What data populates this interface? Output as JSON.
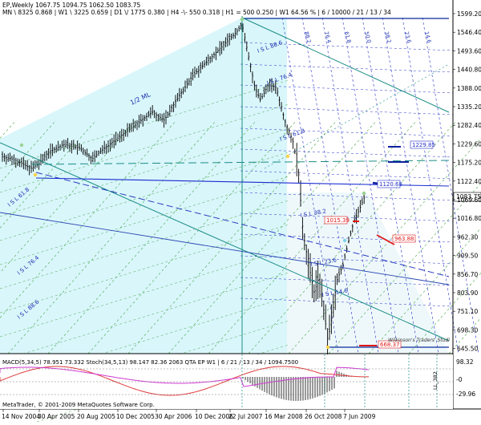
{
  "header": {
    "line1": "EP,Weekly  1067.75 1094.75 1062.50 1083.75",
    "line2": "MN  \\ 8325   0.868  |  W1 \\ 3225   0.659  |  D1 \\/ 1775   0.380  |  H4 -\\- 550   0.318  |  H1 = 500   0.250  |  W1  64.56 %  |  6 / 10000 / 21 / 13 / 34"
  },
  "price_labels": [
    "1599.20",
    "1546.40",
    "1493.60",
    "1440.80",
    "1388.00",
    "1335.20",
    "1282.40",
    "1229.60",
    "1175.20",
    "1122.40",
    "1069.60",
    "1016.80",
    "962.30",
    "909.50",
    "856.70",
    "803.90",
    "751.10",
    "698.30",
    "645.50"
  ],
  "current_price": "1083.75",
  "date_labels": [
    "14 Nov 2004",
    "30 Apr 2005",
    "20 Aug 2005",
    "10 Dec 2005",
    "30 Apr 2006",
    "10 Dec 2006",
    "22 Jul 2007",
    "16 Mar 2008",
    "26 Oct 2008",
    "7 Jun 2009"
  ],
  "isl_labels": [
    {
      "text": "I S L  88.6"
    },
    {
      "text": "I S L  76.4"
    },
    {
      "text": "I S L  61.8"
    },
    {
      "text": "I S L  38.2"
    },
    {
      "text": "I S L  23.6"
    },
    {
      "text": "I S L  14.6"
    },
    {
      "text": "1/2 ML"
    },
    {
      "text": "I S L  61.8"
    },
    {
      "text": "I S L  76.4"
    },
    {
      "text": "I S L  88.6"
    }
  ],
  "fibo_top_labels": [
    "88.2",
    "76.4",
    "61.8",
    "50.0",
    "38.2",
    "23.6",
    "14.6"
  ],
  "price_tags": {
    "t1229": "1229.85",
    "t1120": "1120.68",
    "t1015": "1015.39",
    "t963": "963.88",
    "t668": "668.37"
  },
  "indicator": {
    "header": "MACD(5,34,5) 78.951 73.332   Stoch(34,5,13) 98.147 82.36 2063   QTA EP W1 | 6 / 21 / 13 / 34 / 1094.7500",
    "levels": [
      "98.32",
      "-0",
      "-29.96"
    ],
    "vertical_label": "LL_382"
  },
  "footer": {
    "copyright": "MetaTrader, © 2001-2009 MetaQuotes Software Corp.",
    "watermark": "Wilkinson's Traders' Studi"
  },
  "colors": {
    "cyan_fill": "#d6f7fb",
    "grid_green": "#4aa84a",
    "fibo_blue": "#2530c8",
    "teal_line": "#1a8d84",
    "red_tag": "#e01818"
  }
}
